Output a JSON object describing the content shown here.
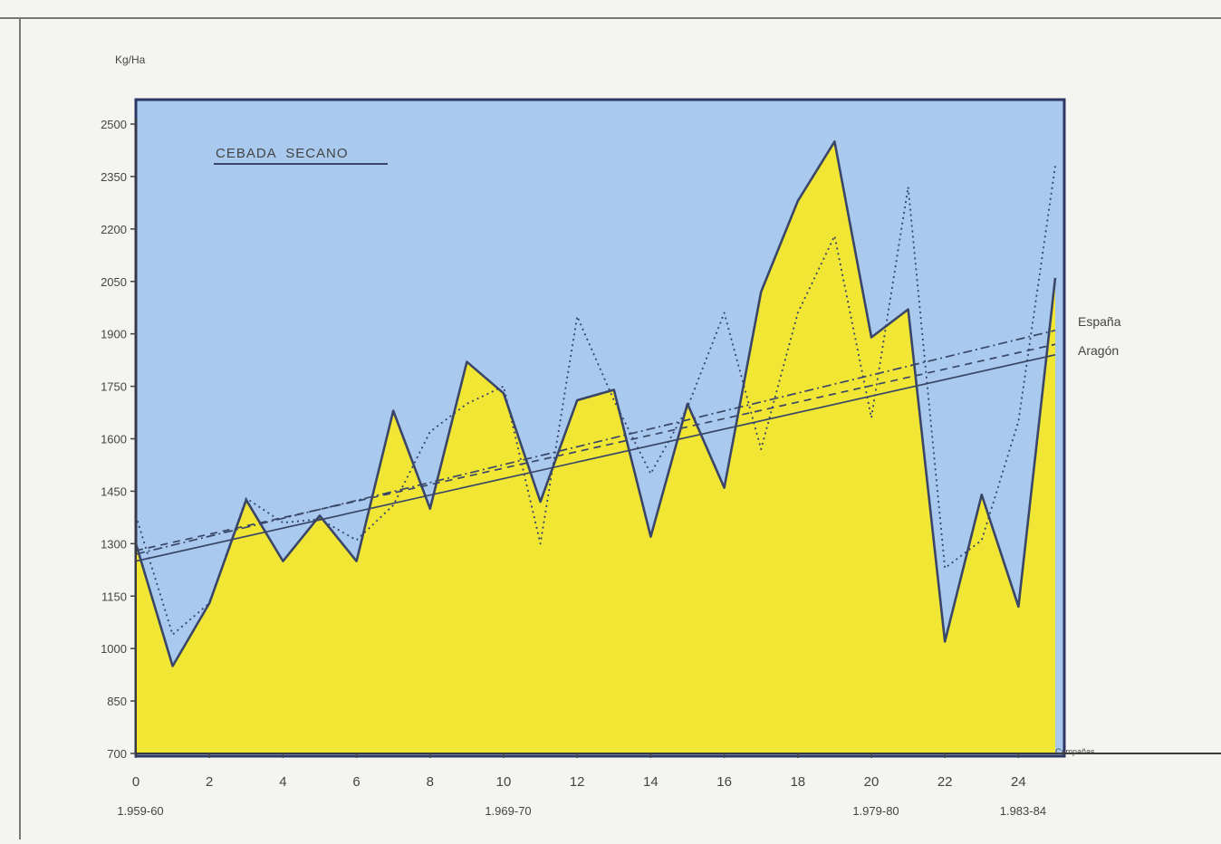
{
  "chart_data": {
    "type": "area",
    "title": "CEBADA  SECANO",
    "ylabel": "Kg/Ha",
    "xlabel": "Campañas",
    "ylim": [
      700,
      2500
    ],
    "xlim": [
      0,
      25
    ],
    "yticks": [
      700,
      850,
      1000,
      1150,
      1300,
      1450,
      1600,
      1750,
      1900,
      2050,
      2200,
      2350,
      2500
    ],
    "ytick_labels": [
      "700",
      "850",
      "1000",
      "1150",
      "1300",
      "1450",
      "1600",
      "1750",
      "1900",
      "2050",
      "2200",
      "2350",
      "2500"
    ],
    "xticks": [
      0,
      2,
      4,
      6,
      8,
      10,
      12,
      14,
      16,
      18,
      20,
      22,
      24
    ],
    "xtick_labels": [
      "0",
      "2",
      "4",
      "6",
      "8",
      "10",
      "12",
      "14",
      "16",
      "18",
      "20",
      "22",
      "24"
    ],
    "period_labels": [
      {
        "x": 0,
        "label": "1.959-60"
      },
      {
        "x": 10,
        "label": "1.969-70"
      },
      {
        "x": 20,
        "label": "1.979-80"
      },
      {
        "x": 24,
        "label": "1.983-84"
      }
    ],
    "x": [
      0,
      1,
      2,
      3,
      4,
      5,
      6,
      7,
      8,
      9,
      10,
      11,
      12,
      13,
      14,
      15,
      16,
      17,
      18,
      19,
      20,
      21,
      22,
      23,
      24,
      25
    ],
    "series": [
      {
        "name": "Aragón",
        "style": "solid-area",
        "fill": "#f1e634",
        "values": [
          1300,
          950,
          1130,
          1425,
          1250,
          1380,
          1250,
          1680,
          1400,
          1820,
          1730,
          1420,
          1710,
          1740,
          1320,
          1700,
          1460,
          2020,
          2280,
          2450,
          1890,
          1970,
          1020,
          1440,
          1120,
          2060
        ]
      },
      {
        "name": "España",
        "style": "dotted",
        "values": [
          1380,
          1040,
          1130,
          1430,
          1360,
          1370,
          1310,
          1410,
          1620,
          1700,
          1750,
          1300,
          1950,
          1710,
          1500,
          1690,
          1960,
          1570,
          1960,
          2180,
          1660,
          2320,
          1230,
          1310,
          1650,
          2380
        ]
      }
    ],
    "trend_lines": [
      {
        "name": "España",
        "style": "dash-dot",
        "start": [
          0,
          1270
        ],
        "end": [
          25,
          1910
        ]
      },
      {
        "name": "Aragón",
        "style": "solid",
        "start": [
          0,
          1250
        ],
        "end": [
          25,
          1840
        ]
      },
      {
        "name": "",
        "style": "dashed",
        "start": [
          0,
          1280
        ],
        "end": [
          25,
          1870
        ]
      }
    ],
    "legend_labels": [
      "España",
      "Aragón"
    ],
    "colors": {
      "plot_bg": "#a9c9ee",
      "area": "#f1e634",
      "line": "#3a4668",
      "dotted": "#33436e",
      "frame": "#2c3766"
    }
  }
}
